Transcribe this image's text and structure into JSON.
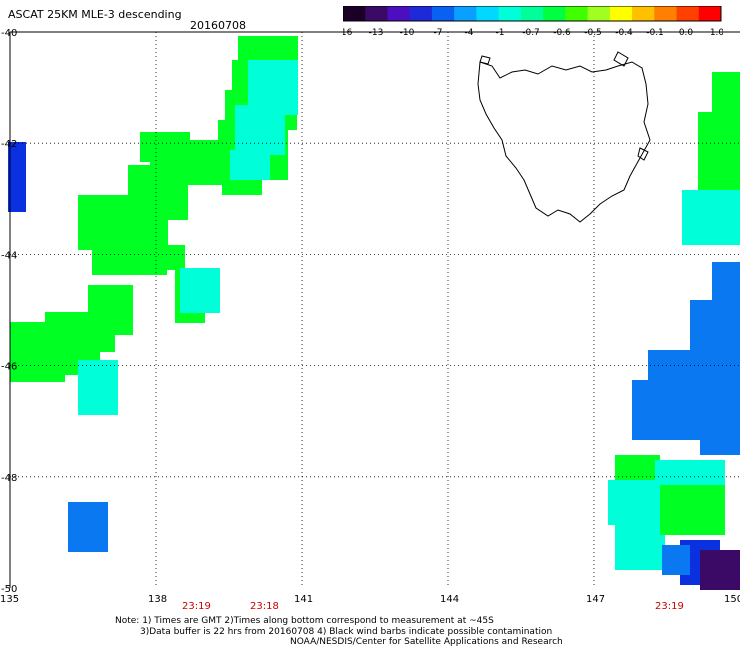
{
  "header": {
    "title": "ASCAT 25KM MLE-3 descending",
    "date": "20160708"
  },
  "colorbar": {
    "labels": [
      "-16",
      "-13",
      "-10",
      "-7",
      "-4",
      "-1",
      "-0.7",
      "-0.6",
      "-0.5",
      "-0.4",
      "-0.1",
      "0.0",
      "1.0"
    ],
    "colors": [
      "#1a0026",
      "#3a0a66",
      "#4b0fbf",
      "#1e2ad8",
      "#0a60f0",
      "#0aa0ff",
      "#00d8ff",
      "#00ffd8",
      "#00ff9a",
      "#00ff40",
      "#40ff00",
      "#a0ff20",
      "#ffff00",
      "#ffc000",
      "#ff8000",
      "#ff4000",
      "#ff0000"
    ]
  },
  "axes": {
    "lat_labels": [
      "-40",
      "-42",
      "-44",
      "-46",
      "-48",
      "-50"
    ],
    "lon_labels": [
      "135",
      "138",
      "141",
      "144",
      "147",
      "150"
    ]
  },
  "time_labels": [
    "23:19",
    "23:18",
    "23:19"
  ],
  "notes": [
    "Note: 1) Times are GMT 2)Times along bottom correspond to measurement at ~45S",
    "3)Data buffer is 22 hrs from 20160708 4) Black wind barbs indicate possible contamination",
    "NOAA/NESDIS/Center for Satellite Applications and Research"
  ],
  "colors": {
    "green": "#00ff22",
    "cyan": "#00ffd8",
    "blue": "#0a78f0",
    "darkblue": "#0a30e0",
    "purple": "#3a0a66",
    "timelabel": "#cc0000"
  }
}
